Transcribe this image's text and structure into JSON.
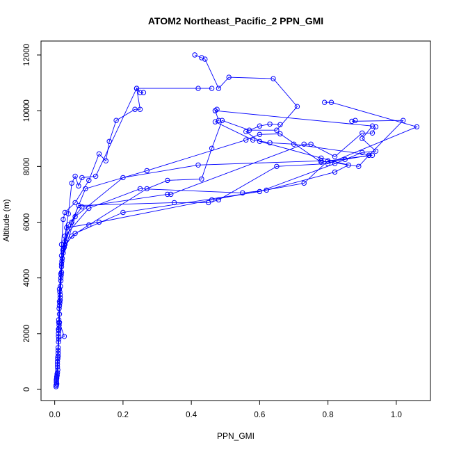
{
  "chart_data": {
    "type": "line",
    "title": "ATOM2 Northeast_Pacific_2 PPN_GMI",
    "xlabel": "PPN_GMI",
    "ylabel": "Altitude (m)",
    "xlim": [
      -0.04,
      1.1
    ],
    "ylim": [
      -400,
      12500
    ],
    "xticks": [
      "0.0",
      "0.2",
      "0.4",
      "0.6",
      "0.8",
      "1.0"
    ],
    "xtick_values": [
      0,
      0.2,
      0.4,
      0.6,
      0.8,
      1.0
    ],
    "yticks": [
      "0",
      "2000",
      "4000",
      "6000",
      "8000",
      "10000",
      "12000"
    ],
    "ytick_values": [
      0,
      2000,
      4000,
      6000,
      8000,
      10000,
      12000
    ],
    "grid": false,
    "color": "#0000ff",
    "marker": "open-circle",
    "series": [
      {
        "values": [
          [
            0.005,
            150
          ],
          [
            0.008,
            600
          ],
          [
            0.01,
            1500
          ],
          [
            0.012,
            2500
          ],
          [
            0.015,
            3500
          ],
          [
            0.02,
            4500
          ],
          [
            0.03,
            5500
          ],
          [
            0.1,
            6500
          ],
          [
            0.25,
            7200
          ],
          [
            0.55,
            7050
          ],
          [
            0.62,
            7150
          ],
          [
            0.82,
            7800
          ],
          [
            0.86,
            8050
          ],
          [
            0.78,
            8300
          ],
          [
            0.6,
            8900
          ],
          [
            0.56,
            9250
          ],
          [
            0.6,
            9450
          ],
          [
            0.63,
            9520
          ],
          [
            0.66,
            9500
          ]
        ]
      },
      {
        "values": [
          [
            0.006,
            200
          ],
          [
            0.009,
            700
          ],
          [
            0.011,
            1700
          ],
          [
            0.014,
            2700
          ],
          [
            0.017,
            3700
          ],
          [
            0.021,
            4600
          ],
          [
            0.035,
            5800
          ],
          [
            0.13,
            6000
          ],
          [
            0.46,
            6800
          ],
          [
            0.73,
            7400
          ],
          [
            0.8,
            8200
          ],
          [
            0.93,
            8400
          ],
          [
            0.7,
            8800
          ],
          [
            0.63,
            8850
          ],
          [
            0.58,
            8950
          ],
          [
            0.47,
            9600
          ],
          [
            0.48,
            9650
          ],
          [
            0.47,
            10000
          ]
        ]
      },
      {
        "values": [
          [
            0.004,
            100
          ],
          [
            0.007,
            500
          ],
          [
            0.01,
            1300
          ],
          [
            0.013,
            2300
          ],
          [
            0.016,
            3300
          ],
          [
            0.02,
            4400
          ],
          [
            0.03,
            5200
          ],
          [
            0.06,
            5600
          ],
          [
            0.2,
            6350
          ],
          [
            0.6,
            7100
          ],
          [
            0.82,
            8100
          ],
          [
            0.9,
            8500
          ],
          [
            0.94,
            8550
          ],
          [
            0.9,
            9000
          ],
          [
            0.93,
            9450
          ],
          [
            0.47,
            10000
          ],
          [
            0.475,
            10050
          ]
        ]
      },
      {
        "values": [
          [
            0.005,
            300
          ],
          [
            0.008,
            900
          ],
          [
            0.011,
            1900
          ],
          [
            0.013,
            2900
          ],
          [
            0.018,
            3900
          ],
          [
            0.025,
            4900
          ],
          [
            0.04,
            5900
          ],
          [
            0.08,
            6550
          ],
          [
            0.33,
            7000
          ],
          [
            0.34,
            7000
          ],
          [
            0.73,
            8800
          ],
          [
            0.75,
            8800
          ],
          [
            0.82,
            8350
          ],
          [
            0.9,
            9200
          ],
          [
            0.93,
            9200
          ],
          [
            0.94,
            9420
          ]
        ]
      },
      {
        "values": [
          [
            0.006,
            400
          ],
          [
            0.009,
            1100
          ],
          [
            0.012,
            2100
          ],
          [
            0.015,
            3100
          ],
          [
            0.019,
            4100
          ],
          [
            0.028,
            5100
          ],
          [
            0.05,
            6000
          ],
          [
            0.09,
            7200
          ],
          [
            0.27,
            7850
          ],
          [
            0.56,
            8950
          ],
          [
            0.6,
            9150
          ],
          [
            0.66,
            9170
          ],
          [
            0.78,
            8150
          ],
          [
            0.85,
            8250
          ],
          [
            0.92,
            8400
          ],
          [
            1.02,
            9650
          ],
          [
            0.87,
            9620
          ],
          [
            0.88,
            9650
          ]
        ]
      },
      {
        "values": [
          [
            0.007,
            500
          ],
          [
            0.01,
            1200
          ],
          [
            0.013,
            2200
          ],
          [
            0.016,
            3200
          ],
          [
            0.02,
            4200
          ],
          [
            0.03,
            5300
          ],
          [
            0.07,
            6600
          ],
          [
            0.35,
            6700
          ],
          [
            0.45,
            6700
          ],
          [
            0.48,
            6800
          ],
          [
            0.65,
            8000
          ],
          [
            0.8,
            8100
          ],
          [
            1.06,
            9420
          ],
          [
            0.81,
            10300
          ],
          [
            0.79,
            10300
          ]
        ]
      },
      {
        "values": [
          [
            0.005,
            250
          ],
          [
            0.008,
            800
          ],
          [
            0.012,
            1800
          ],
          [
            0.028,
            1900
          ],
          [
            0.014,
            2400
          ],
          [
            0.016,
            3400
          ],
          [
            0.022,
            4700
          ],
          [
            0.06,
            6200
          ],
          [
            0.2,
            7600
          ],
          [
            0.42,
            8050
          ],
          [
            0.78,
            8200
          ],
          [
            0.89,
            8000
          ],
          [
            0.92,
            8400
          ]
        ]
      },
      {
        "values": [
          [
            0.004,
            150
          ],
          [
            0.007,
            550
          ],
          [
            0.01,
            1400
          ],
          [
            0.012,
            2400
          ],
          [
            0.014,
            3600
          ],
          [
            0.02,
            4800
          ],
          [
            0.02,
            5200
          ],
          [
            0.025,
            6100
          ],
          [
            0.03,
            6350
          ],
          [
            0.06,
            6700
          ],
          [
            0.1,
            7500
          ],
          [
            0.13,
            8450
          ],
          [
            0.15,
            8200
          ],
          [
            0.16,
            8900
          ],
          [
            0.18,
            9650
          ],
          [
            0.235,
            10050
          ],
          [
            0.25,
            10050
          ],
          [
            0.24,
            10800
          ],
          [
            0.25,
            10650
          ],
          [
            0.26,
            10650
          ]
        ]
      },
      {
        "values": [
          [
            0.005,
            350
          ],
          [
            0.008,
            1000
          ],
          [
            0.011,
            2000
          ],
          [
            0.014,
            3000
          ],
          [
            0.018,
            4000
          ],
          [
            0.024,
            5000
          ],
          [
            0.04,
            6300
          ],
          [
            0.05,
            7400
          ],
          [
            0.06,
            7650
          ],
          [
            0.07,
            7300
          ],
          [
            0.08,
            7600
          ],
          [
            0.12,
            7650
          ],
          [
            0.24,
            10800
          ],
          [
            0.42,
            10800
          ],
          [
            0.46,
            10800
          ]
        ]
      },
      {
        "values": [
          [
            0.006,
            450
          ],
          [
            0.009,
            1150
          ],
          [
            0.011,
            2150
          ],
          [
            0.014,
            3150
          ],
          [
            0.018,
            4150
          ],
          [
            0.026,
            5050
          ],
          [
            0.05,
            5500
          ],
          [
            0.1,
            5900
          ],
          [
            0.27,
            7200
          ],
          [
            0.33,
            7500
          ],
          [
            0.43,
            7550
          ],
          [
            0.46,
            8650
          ],
          [
            0.49,
            9650
          ],
          [
            0.57,
            9300
          ],
          [
            0.65,
            9300
          ],
          [
            0.71,
            10150
          ],
          [
            0.64,
            11150
          ],
          [
            0.51,
            11200
          ],
          [
            0.48,
            10800
          ],
          [
            0.44,
            11850
          ],
          [
            0.43,
            11900
          ],
          [
            0.41,
            12000
          ]
        ]
      }
    ]
  }
}
